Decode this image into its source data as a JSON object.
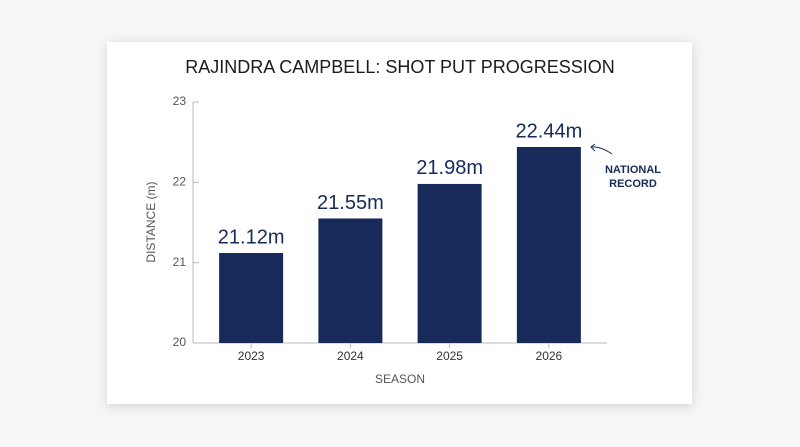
{
  "chart_data": {
    "type": "bar",
    "title": "RAJINDRA CAMPBELL: SHOT PUT PROGRESSION",
    "x_label": "SEASON",
    "y_label": "DISTANCE (m)",
    "categories": [
      "2023",
      "2024",
      "2025",
      "2026"
    ],
    "values": [
      21.12,
      21.55,
      21.98,
      22.44
    ],
    "value_labels": [
      "21.12m",
      "21.55m",
      "21.98m",
      "22.44m"
    ],
    "color": "#172a5a",
    "ylim": [
      20,
      23
    ],
    "yticks": [
      20,
      21,
      22,
      23
    ],
    "annotation_lines": [
      "NATIONAL",
      "RECORD"
    ]
  }
}
